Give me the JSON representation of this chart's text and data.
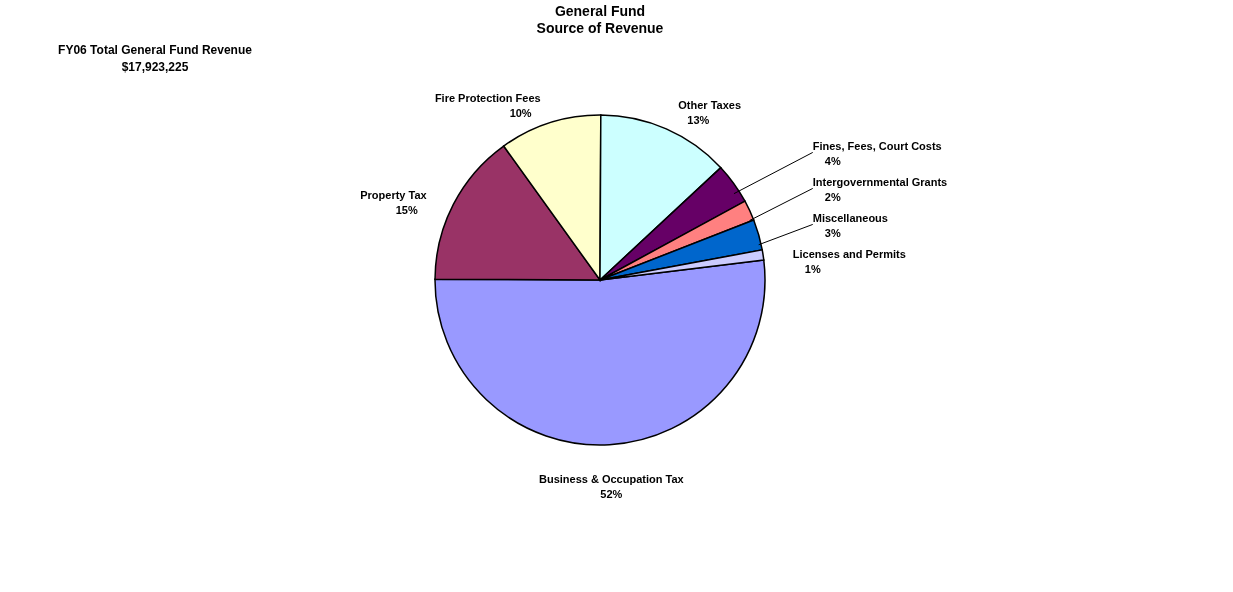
{
  "chart_data": {
    "type": "pie",
    "title": "General Fund",
    "subtitle": "Source of Revenue",
    "annotations": [
      "FY06 Total General Fund Revenue",
      "$17,923,225"
    ],
    "categories": [
      "Business & Occupation Tax",
      "Property Tax",
      "Fire Protection Fees",
      "Other Taxes",
      "Fines, Fees, Court Costs",
      "Intergovernmental Grants",
      "Miscellaneous",
      "Licenses and Permits"
    ],
    "values": [
      52,
      15,
      10,
      13,
      4,
      2,
      3,
      1
    ],
    "value_labels": [
      "52%",
      "15%",
      "10%",
      "13%",
      "4%",
      "2%",
      "3%",
      "1%"
    ],
    "colors": [
      "#9999ff",
      "#993366",
      "#ffffcc",
      "#ccffff",
      "#660066",
      "#ff8080",
      "#0066cc",
      "#ccccff"
    ],
    "legend": false
  }
}
